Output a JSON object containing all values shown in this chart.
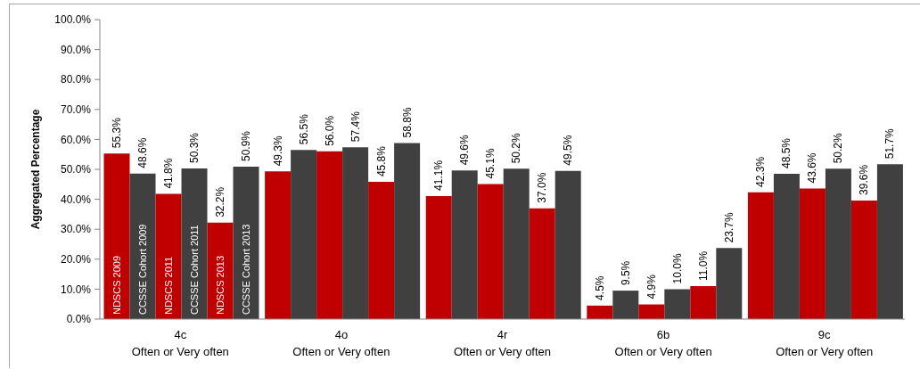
{
  "chart_data": {
    "type": "bar",
    "ylabel": "Aggregated Percentage",
    "categories": [
      "4c\nOften or Very often",
      "4o\nOften or Very often",
      "4r\nOften or Very often",
      "6b\nOften or Very often",
      "9c\nOften or Very often"
    ],
    "series": [
      {
        "name": "NDSCS 2009",
        "color": "#c00000",
        "values": [
          55.3,
          49.3,
          41.1,
          4.5,
          42.3
        ],
        "value_labels": [
          "55.3%",
          "49.3%",
          "41.1%",
          "4.5%",
          "42.3%"
        ]
      },
      {
        "name": "CCSSE Cohort 2009",
        "color": "#404040",
        "values": [
          48.6,
          56.5,
          49.6,
          9.5,
          48.5
        ],
        "value_labels": [
          "48.6%",
          "56.5%",
          "49.6%",
          "9.5%",
          "48.5%"
        ]
      },
      {
        "name": "NDSCS 2011",
        "color": "#c00000",
        "values": [
          41.8,
          56.0,
          45.1,
          4.9,
          43.6
        ],
        "value_labels": [
          "41.8%",
          "56.0%",
          "45.1%",
          "4.9%",
          "43.6%"
        ]
      },
      {
        "name": "CCSSE Cohort 2011",
        "color": "#404040",
        "values": [
          50.3,
          57.4,
          50.2,
          10.0,
          50.2
        ],
        "value_labels": [
          "50.3%",
          "57.4%",
          "50.2%",
          "10.0%",
          "50.2%"
        ]
      },
      {
        "name": "NDSCS 2013",
        "color": "#c00000",
        "values": [
          32.2,
          45.8,
          37.0,
          11.0,
          39.6
        ],
        "value_labels": [
          "32.2%",
          "45.8%",
          "37.0%",
          "11.0%",
          "39.6%"
        ]
      },
      {
        "name": "CCSSE Cohort 2013",
        "color": "#404040",
        "values": [
          50.9,
          58.8,
          49.5,
          23.7,
          51.7
        ],
        "value_labels": [
          "50.9%",
          "58.8%",
          "49.5%",
          "23.7%",
          "51.7%"
        ]
      }
    ],
    "ylim": [
      0,
      100
    ],
    "yticks": [
      {
        "value": 0,
        "label": "0.0%"
      },
      {
        "value": 10,
        "label": "10.0%"
      },
      {
        "value": 20,
        "label": "20.0%"
      },
      {
        "value": 30,
        "label": "30.0%"
      },
      {
        "value": 40,
        "label": "40.0%"
      },
      {
        "value": 50,
        "label": "50.0%"
      },
      {
        "value": 60,
        "label": "60.0%"
      },
      {
        "value": 70,
        "label": "70.0%"
      },
      {
        "value": 80,
        "label": "80.0%"
      },
      {
        "value": 90,
        "label": "90.0%"
      },
      {
        "value": 100,
        "label": "100.0%"
      }
    ]
  }
}
